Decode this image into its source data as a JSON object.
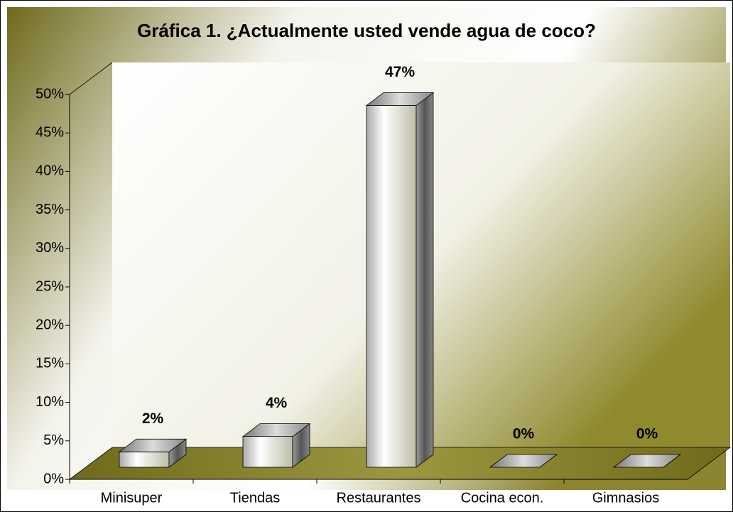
{
  "chart_data": {
    "type": "bar3d",
    "title": "Gráfica 1. ¿Actualmente usted vende agua de coco?",
    "categories": [
      "Minisuper",
      "Tiendas",
      "Restaurantes",
      "Cocina econ.",
      "Gimnasios"
    ],
    "values": [
      2,
      4,
      47,
      0,
      0
    ],
    "value_labels": [
      "2%",
      "4%",
      "47%",
      "0%",
      "0%"
    ],
    "ylim": [
      0,
      50
    ],
    "yticks": [
      {
        "value": 0,
        "label": "0%"
      },
      {
        "value": 5,
        "label": "5%"
      },
      {
        "value": 10,
        "label": "10%"
      },
      {
        "value": 15,
        "label": "15%"
      },
      {
        "value": 20,
        "label": "20%"
      },
      {
        "value": 25,
        "label": "25%"
      },
      {
        "value": 30,
        "label": "30%"
      },
      {
        "value": 35,
        "label": "35%"
      },
      {
        "value": 40,
        "label": "40%"
      },
      {
        "value": 45,
        "label": "45%"
      },
      {
        "value": 50,
        "label": "50%"
      }
    ]
  }
}
